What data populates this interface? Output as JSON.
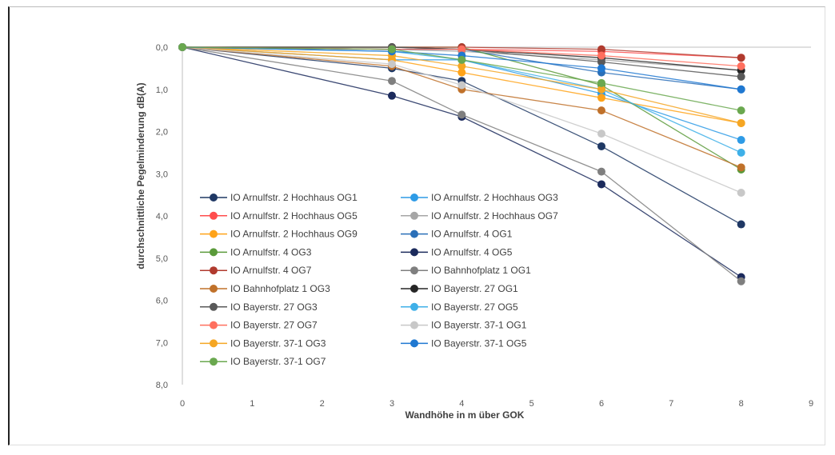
{
  "chart_data": {
    "type": "line",
    "xlabel": "Wandhöhe in m über GOK",
    "ylabel": "durchschnittliche Pegelminderung dB(A)",
    "xlim": [
      0,
      9
    ],
    "ylim": [
      0,
      8
    ],
    "y_reversed": true,
    "xticks": [
      "0",
      "1",
      "2",
      "3",
      "4",
      "5",
      "6",
      "7",
      "8",
      "9"
    ],
    "yticks": [
      "0,0",
      "1,0",
      "2,0",
      "3,0",
      "4,0",
      "5,0",
      "6,0",
      "7,0",
      "8,0"
    ],
    "grid": false,
    "legend_position": "bottom-left inside plot",
    "x": [
      0,
      3,
      4,
      6,
      8
    ],
    "series": [
      {
        "name": "IO Arnulfstr. 2 Hochhaus OG1",
        "color": "#1f3864",
        "values": [
          0,
          0.5,
          0.8,
          2.35,
          4.2
        ]
      },
      {
        "name": "IO Arnulfstr. 2 Hochhaus OG3",
        "color": "#2e9be6",
        "values": [
          0,
          0.3,
          0.3,
          1.1,
          2.2
        ]
      },
      {
        "name": "IO Arnulfstr. 2 Hochhaus OG5",
        "color": "#ff4d4d",
        "values": [
          0,
          0.05,
          0.05,
          0.1,
          0.25
        ]
      },
      {
        "name": "IO Arnulfstr. 2 Hochhaus OG7",
        "color": "#a6a6a6",
        "values": [
          0,
          0.05,
          0.1,
          0.3,
          0.55
        ]
      },
      {
        "name": "IO Arnulfstr. 2 Hochhaus OG9",
        "color": "#ffa319",
        "values": [
          0,
          0.3,
          0.6,
          1.2,
          1.8
        ]
      },
      {
        "name": "IO Arnulfstr. 4 OG1",
        "color": "#2a6fb8",
        "values": [
          0,
          0.05,
          0.05,
          0.6,
          1.0
        ]
      },
      {
        "name": "IO Arnulfstr. 4 OG3",
        "color": "#5a9a3a",
        "values": [
          0,
          0.0,
          0.0,
          0.9,
          2.9
        ]
      },
      {
        "name": "IO Arnulfstr. 4 OG5",
        "color": "#1b2a5c",
        "values": [
          0,
          1.15,
          1.65,
          3.25,
          5.45
        ]
      },
      {
        "name": "IO Arnulfstr. 4 OG7",
        "color": "#b03a2e",
        "values": [
          0,
          0.0,
          0.0,
          0.05,
          0.25
        ]
      },
      {
        "name": "IO Bahnhofplatz 1 OG1",
        "color": "#7f7f7f",
        "values": [
          0,
          0.8,
          1.6,
          2.95,
          5.55
        ]
      },
      {
        "name": "IO Bahnhofplatz 1 OG3",
        "color": "#c0712a",
        "values": [
          0,
          0.45,
          1.0,
          1.5,
          2.85
        ]
      },
      {
        "name": "IO Bayerstr. 27 OG1",
        "color": "#262626",
        "values": [
          0,
          0.0,
          0.05,
          0.25,
          0.55
        ]
      },
      {
        "name": "IO Bayerstr. 27 OG3",
        "color": "#595959",
        "values": [
          0,
          0.0,
          0.05,
          0.35,
          0.7
        ]
      },
      {
        "name": "IO Bayerstr. 27 OG5",
        "color": "#3fb0e8",
        "values": [
          0,
          0.1,
          0.3,
          1.0,
          2.5
        ]
      },
      {
        "name": "IO Bayerstr. 27 OG7",
        "color": "#ff6f5e",
        "values": [
          0,
          0.05,
          0.05,
          0.2,
          0.45
        ]
      },
      {
        "name": "IO Bayerstr. 37-1 OG1",
        "color": "#c8c8c8",
        "values": [
          0,
          0.4,
          0.9,
          2.05,
          3.45
        ]
      },
      {
        "name": "IO Bayerstr. 37-1 OG3",
        "color": "#f5a623",
        "values": [
          0,
          0.2,
          0.45,
          1.0,
          1.8
        ]
      },
      {
        "name": "IO Bayerstr. 37-1 OG5",
        "color": "#1f78d1",
        "values": [
          0,
          0.1,
          0.2,
          0.5,
          1.0
        ]
      },
      {
        "name": "IO Bayerstr. 37-1 OG7",
        "color": "#6aa84f",
        "values": [
          0,
          0.05,
          0.3,
          0.85,
          1.5
        ]
      }
    ]
  }
}
